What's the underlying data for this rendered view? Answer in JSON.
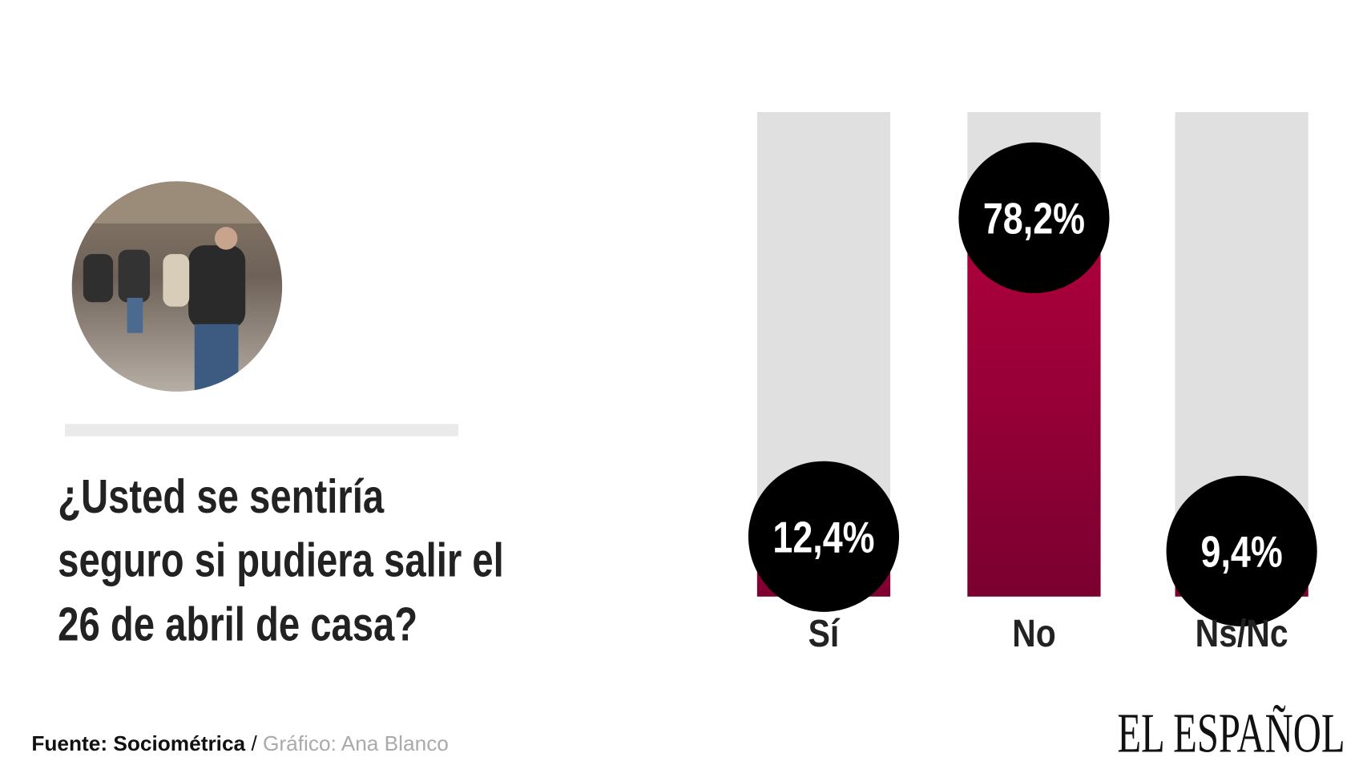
{
  "chart_data": {
    "type": "bar",
    "title": [
      "¿Usted se sentiría",
      "seguro si pudiera salir el",
      "26 de abril de casa?"
    ],
    "categories": [
      "Sí",
      "No",
      "Ns/Nc"
    ],
    "values": [
      12.4,
      78.2,
      9.4
    ],
    "value_labels": [
      "12,4%",
      "78,2%",
      "9,4%"
    ],
    "color": "#a3003a",
    "ylim": [
      0,
      100
    ],
    "source": "Fuente: Sociométrica",
    "separator": "/",
    "credit": "Gráfico: Ana Blanco",
    "brand": "EL ESPAÑOL"
  }
}
